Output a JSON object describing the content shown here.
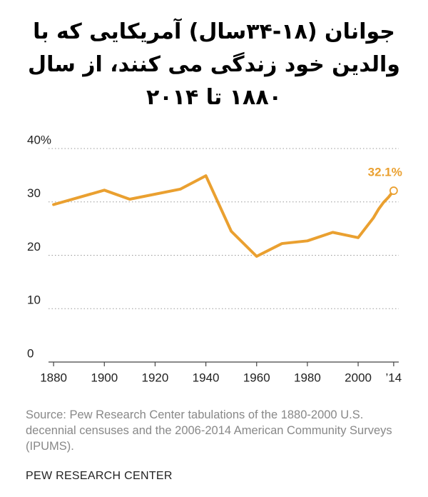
{
  "chart_data": {
    "type": "line",
    "title": [
      "جوانان (۱۸-۳۴سال) آمریکایی که با",
      "والدین خود زندگی می کنند، از سال",
      "۱۸۸۰ تا ۲۰۱۴"
    ],
    "x": [
      1880,
      1900,
      1910,
      1930,
      1940,
      1950,
      1960,
      1970,
      1980,
      1990,
      2000,
      2006,
      2008,
      2010,
      2012,
      2014
    ],
    "series": [
      {
        "color": "#eaa030",
        "values": [
          29.5,
          32.2,
          30.5,
          32.4,
          34.9,
          24.5,
          19.8,
          22.2,
          22.7,
          24.3,
          23.3,
          27.0,
          28.6,
          29.9,
          30.9,
          32.1
        ],
        "value_labels": [
          null,
          null,
          null,
          null,
          null,
          null,
          null,
          null,
          null,
          null,
          null,
          null,
          null,
          null,
          null,
          "32.1%"
        ]
      }
    ],
    "xlim": [
      1878,
      2016
    ],
    "xticks": [
      1880,
      1900,
      1920,
      1940,
      1960,
      1980,
      2000,
      {
        "value": 2014,
        "label": "’14"
      }
    ],
    "ylim": [
      0,
      40
    ],
    "yticks": [
      0,
      10,
      20,
      30,
      {
        "value": 40,
        "label": "40%"
      }
    ],
    "grid": true,
    "source": "Source: Pew Research Center tabulations of the 1880-2000 U.S. decennial censuses and the 2006-2014 American Community Surveys (IPUMS).",
    "footer": "PEW RESEARCH CENTER"
  }
}
